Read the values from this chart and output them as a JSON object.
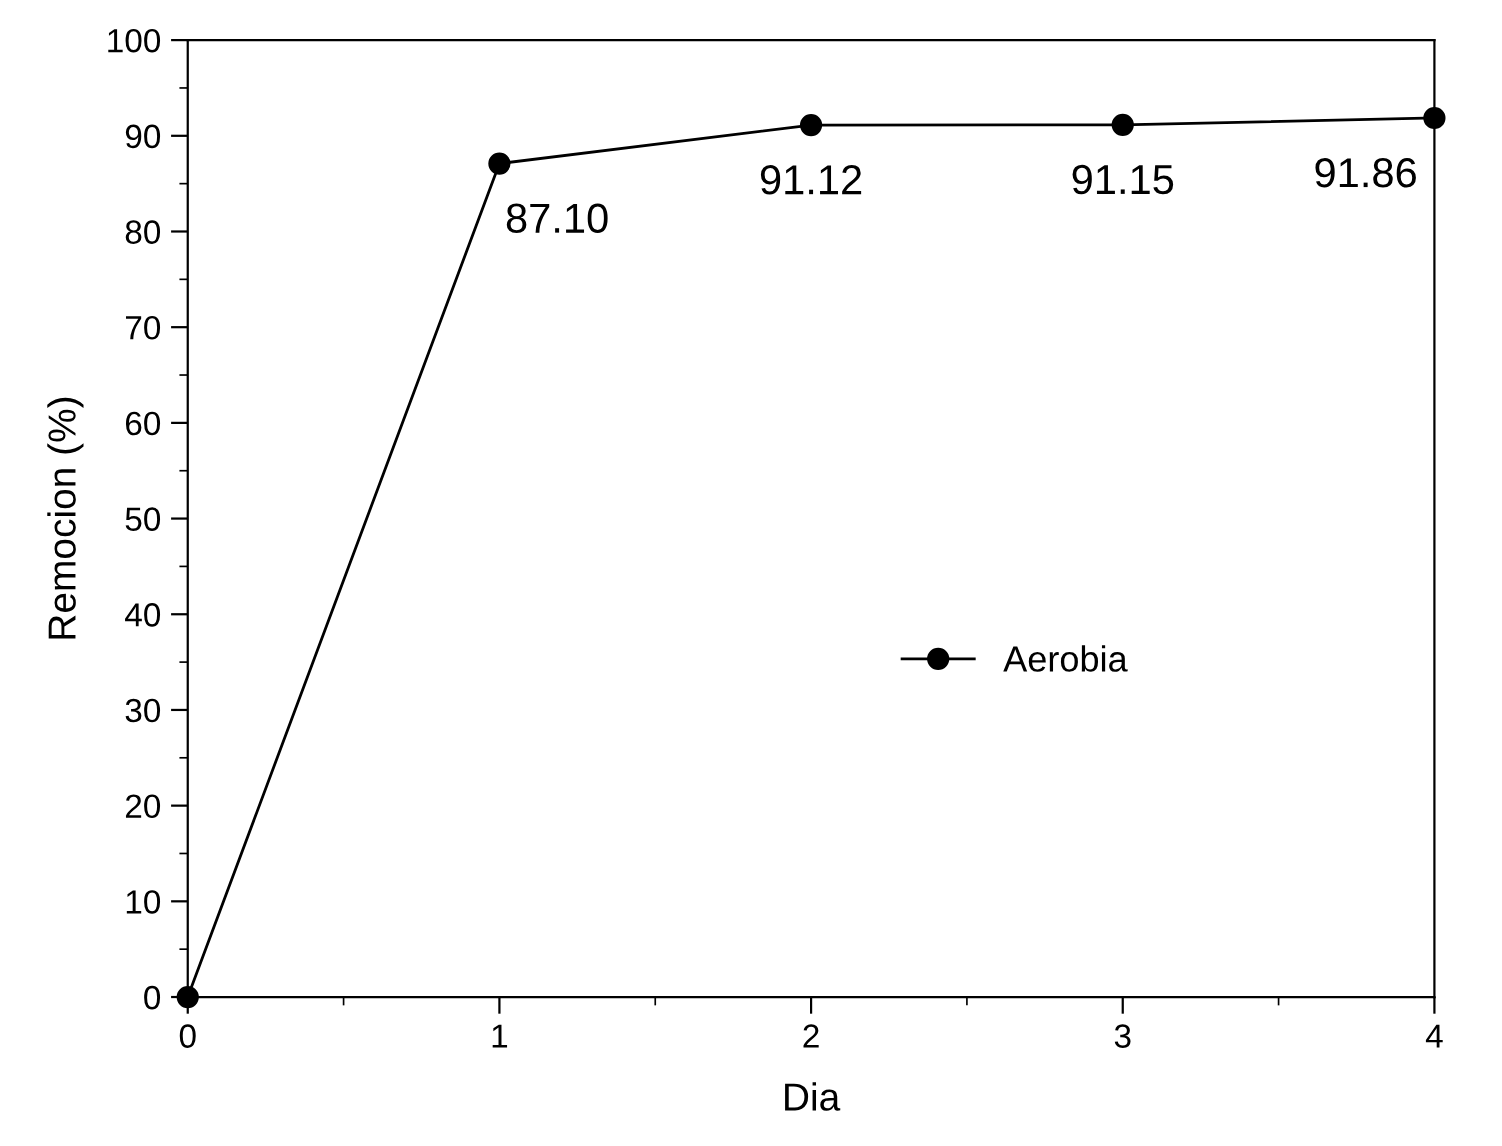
{
  "chart_data": {
    "type": "line",
    "xlabel": "Dia",
    "ylabel": "Remocion (%)",
    "x": [
      0,
      1,
      2,
      3,
      4
    ],
    "series": [
      {
        "name": "Aerobia",
        "color": "#000000",
        "values": [
          0,
          87.1,
          91.12,
          91.15,
          91.86
        ],
        "value_labels": [
          null,
          "87.10",
          "91.12",
          "91.15",
          "91.86"
        ]
      }
    ],
    "xlim": [
      0,
      4
    ],
    "ylim": [
      0,
      100
    ],
    "xticks": [
      0,
      {
        "value": 0.5,
        "label": null
      },
      1,
      {
        "value": 1.5,
        "label": null
      },
      2,
      {
        "value": 2.5,
        "label": null
      },
      3,
      {
        "value": 3.5,
        "label": null
      },
      4
    ],
    "yticks": [
      0,
      {
        "value": 5,
        "label": null
      },
      10,
      {
        "value": 15,
        "label": null
      },
      20,
      {
        "value": 25,
        "label": null
      },
      30,
      {
        "value": 35,
        "label": null
      },
      40,
      {
        "value": 45,
        "label": null
      },
      50,
      {
        "value": 55,
        "label": null
      },
      60,
      {
        "value": 65,
        "label": null
      },
      70,
      {
        "value": 75,
        "label": null
      },
      80,
      {
        "value": 85,
        "label": null
      },
      90,
      {
        "value": 95,
        "label": null
      },
      100
    ],
    "marker": "circle",
    "line_style": "solid",
    "grid": false,
    "legend": "right"
  }
}
